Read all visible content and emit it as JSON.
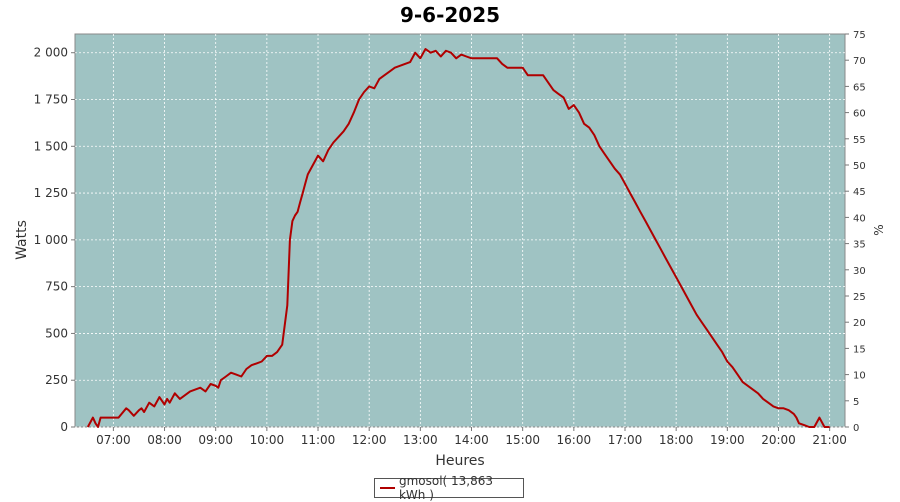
{
  "chart_data": {
    "type": "line",
    "title": "9-6-2025",
    "xlabel": "Heures",
    "ylabel": "Watts",
    "y2label": "%",
    "xlim": [
      6.25,
      21.3
    ],
    "ylim": [
      0,
      2100
    ],
    "y2lim": [
      0,
      75
    ],
    "x_ticks": [
      "07:00",
      "08:00",
      "09:00",
      "10:00",
      "11:00",
      "12:00",
      "13:00",
      "14:00",
      "15:00",
      "16:00",
      "17:00",
      "18:00",
      "19:00",
      "20:00",
      "21:00"
    ],
    "x_tick_values": [
      7,
      8,
      9,
      10,
      11,
      12,
      13,
      14,
      15,
      16,
      17,
      18,
      19,
      20,
      21
    ],
    "y_ticks": [
      "0",
      "250",
      "500",
      "750",
      "1 000",
      "1 250",
      "1 500",
      "1 750",
      "2 000"
    ],
    "y_tick_values": [
      0,
      250,
      500,
      750,
      1000,
      1250,
      1500,
      1750,
      2000
    ],
    "y2_ticks": [
      "0",
      "5",
      "10",
      "15",
      "20",
      "25",
      "30",
      "35",
      "40",
      "45",
      "50",
      "55",
      "60",
      "65",
      "70",
      "75"
    ],
    "y2_tick_values": [
      0,
      5,
      10,
      15,
      20,
      25,
      30,
      35,
      40,
      45,
      50,
      55,
      60,
      65,
      70,
      75
    ],
    "grid": true,
    "colors": {
      "plot_bg": "#9fc3c3",
      "series": "#b00000",
      "grid": "#ffffff"
    },
    "legend": {
      "position": "bottom",
      "label": "gmosol( 13,863 kWh )"
    },
    "series": [
      {
        "name": "gmosol( 13,863 kWh )",
        "x": [
          6.5,
          6.6,
          6.65,
          6.7,
          6.75,
          6.8,
          6.9,
          7.0,
          7.1,
          7.25,
          7.3,
          7.4,
          7.5,
          7.55,
          7.6,
          7.7,
          7.8,
          7.9,
          8.0,
          8.05,
          8.1,
          8.2,
          8.3,
          8.4,
          8.5,
          8.6,
          8.7,
          8.8,
          8.9,
          9.0,
          9.05,
          9.1,
          9.2,
          9.3,
          9.4,
          9.5,
          9.6,
          9.7,
          9.8,
          9.9,
          10.0,
          10.1,
          10.2,
          10.3,
          10.4,
          10.45,
          10.5,
          10.55,
          10.6,
          10.65,
          10.7,
          10.75,
          10.8,
          10.9,
          11.0,
          11.1,
          11.2,
          11.3,
          11.4,
          11.5,
          11.6,
          11.7,
          11.8,
          11.9,
          12.0,
          12.1,
          12.2,
          12.3,
          12.4,
          12.5,
          12.6,
          12.8,
          12.9,
          13.0,
          13.1,
          13.2,
          13.3,
          13.4,
          13.5,
          13.6,
          13.7,
          13.8,
          13.9,
          14.0,
          14.1,
          14.5,
          14.6,
          14.7,
          15.0,
          15.1,
          15.3,
          15.4,
          15.5,
          15.6,
          15.7,
          15.8,
          15.9,
          16.0,
          16.1,
          16.2,
          16.3,
          16.4,
          16.5,
          16.6,
          16.7,
          16.8,
          16.9,
          17.0,
          17.1,
          17.2,
          17.3,
          17.4,
          17.5,
          17.6,
          17.7,
          17.8,
          17.9,
          18.0,
          18.1,
          18.2,
          18.3,
          18.4,
          18.5,
          18.6,
          18.7,
          18.8,
          18.9,
          19.0,
          19.1,
          19.2,
          19.3,
          19.4,
          19.5,
          19.6,
          19.7,
          19.8,
          19.9,
          20.0,
          20.1,
          20.2,
          20.3,
          20.35,
          20.4,
          20.5,
          20.6,
          20.7,
          20.8,
          20.9,
          21.0
        ],
        "y": [
          0,
          50,
          20,
          0,
          50,
          50,
          50,
          50,
          50,
          100,
          90,
          60,
          90,
          100,
          80,
          130,
          110,
          160,
          120,
          150,
          130,
          180,
          150,
          170,
          190,
          200,
          210,
          190,
          230,
          220,
          210,
          250,
          270,
          290,
          280,
          270,
          310,
          330,
          340,
          350,
          380,
          380,
          400,
          440,
          650,
          1000,
          1100,
          1130,
          1150,
          1200,
          1250,
          1300,
          1350,
          1400,
          1450,
          1420,
          1480,
          1520,
          1550,
          1580,
          1620,
          1680,
          1750,
          1790,
          1820,
          1810,
          1860,
          1880,
          1900,
          1920,
          1930,
          1950,
          2000,
          1970,
          2020,
          2000,
          2010,
          1980,
          2010,
          2000,
          1970,
          1990,
          1980,
          1970,
          1970,
          1970,
          1940,
          1920,
          1920,
          1880,
          1880,
          1880,
          1840,
          1800,
          1780,
          1760,
          1700,
          1720,
          1680,
          1620,
          1600,
          1560,
          1500,
          1460,
          1420,
          1380,
          1350,
          1300,
          1250,
          1200,
          1150,
          1100,
          1050,
          1000,
          950,
          900,
          850,
          800,
          750,
          700,
          650,
          600,
          560,
          520,
          480,
          440,
          400,
          350,
          320,
          280,
          240,
          220,
          200,
          180,
          150,
          130,
          110,
          100,
          100,
          90,
          70,
          50,
          20,
          10,
          0,
          0,
          50,
          0,
          0
        ]
      }
    ]
  }
}
